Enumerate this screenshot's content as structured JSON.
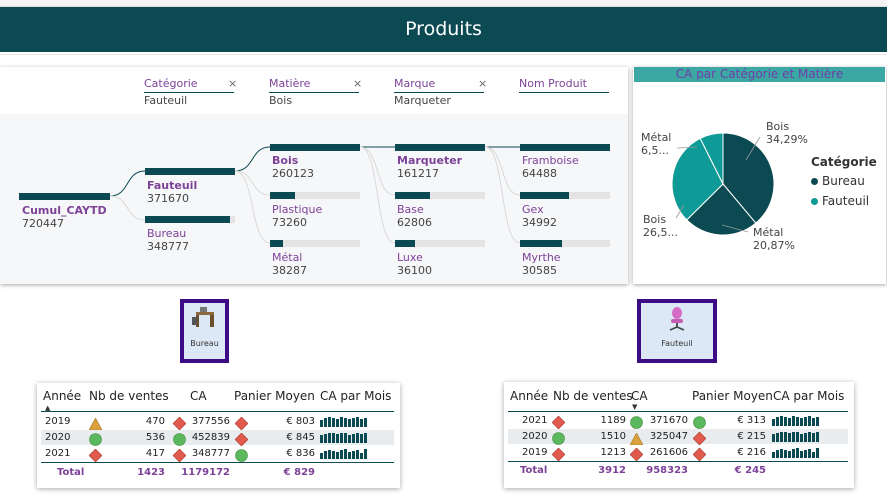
{
  "page": {
    "title": "Produits"
  },
  "filters": [
    {
      "label": "Catégorie",
      "value": "Fauteuil"
    },
    {
      "label": "Matière",
      "value": "Bois"
    },
    {
      "label": "Marque",
      "value": "Marqueter"
    },
    {
      "label": "Nom Produit",
      "value": ""
    }
  ],
  "tree": {
    "root": {
      "name": "Cumul_CAYTD",
      "value": "720447"
    },
    "level1": [
      {
        "name": "Fauteuil",
        "value": "371670",
        "fill": 1.0
      },
      {
        "name": "Bureau",
        "value": "348777",
        "fill": 0.94
      }
    ],
    "level2": [
      {
        "name": "Bois",
        "value": "260123",
        "fill": 1.0
      },
      {
        "name": "Plastique",
        "value": "73260",
        "fill": 0.28
      },
      {
        "name": "Métal",
        "value": "38287",
        "fill": 0.15
      }
    ],
    "level3": [
      {
        "name": "Marqueter",
        "value": "161217",
        "fill": 1.0
      },
      {
        "name": "Base",
        "value": "62806",
        "fill": 0.39
      },
      {
        "name": "Luxe",
        "value": "36100",
        "fill": 0.22
      }
    ],
    "level4": [
      {
        "name": "Framboise",
        "value": "64488",
        "fill": 1.0
      },
      {
        "name": "Gex",
        "value": "34992",
        "fill": 0.54
      },
      {
        "name": "Myrthe",
        "value": "30585",
        "fill": 0.47
      }
    ]
  },
  "pie": {
    "title": "CA par Catégorie et Matière",
    "legend_title": "Catégorie",
    "legend": [
      {
        "name": "Bureau",
        "color": "#0b4a52"
      },
      {
        "name": "Fauteuil",
        "color": "#0e9a96"
      }
    ],
    "labels": {
      "bois_bureau": [
        "Bois",
        "34,29%"
      ],
      "metal_bureau": [
        "Métal",
        "20,87%"
      ],
      "bois_fauteuil": [
        "Bois",
        "26,5..."
      ],
      "metal_fauteuil": [
        "Métal",
        "6,5..."
      ]
    }
  },
  "chart_data": {
    "type": "pie",
    "title": "CA par Catégorie et Matière",
    "series": [
      {
        "name": "Bureau",
        "slices": [
          {
            "label": "Bois",
            "value": 34.29
          },
          {
            "label": "Métal",
            "value": 20.87
          }
        ]
      },
      {
        "name": "Fauteuil",
        "slices": [
          {
            "label": "Bois",
            "value": 26.5
          },
          {
            "label": "Métal",
            "value": 6.5
          }
        ]
      }
    ]
  },
  "buttons": [
    {
      "label": "Bureau"
    },
    {
      "label": "Fauteuil"
    }
  ],
  "table_left": {
    "headers": [
      "Année",
      "Nb de ventes",
      "CA",
      "Panier Moyen",
      "CA par Mois"
    ],
    "rows": [
      {
        "annee": "2019",
        "nb": "470",
        "ca": "377556",
        "panier": "€ 803",
        "nb_icon": "triangle-icon",
        "ca_icon": "diamond-icon",
        "panier_icon": "diamond-icon"
      },
      {
        "annee": "2020",
        "nb": "536",
        "ca": "452839",
        "panier": "€ 845",
        "nb_icon": "circle-icon",
        "ca_icon": "circle-icon",
        "panier_icon": "diamond-icon"
      },
      {
        "annee": "2021",
        "nb": "417",
        "ca": "348777",
        "panier": "€ 836",
        "nb_icon": "diamond-icon",
        "ca_icon": "diamond-icon",
        "panier_icon": "circle-icon"
      }
    ],
    "total": {
      "label": "Total",
      "nb": "1423",
      "ca": "1179172",
      "panier": "€ 829"
    }
  },
  "table_right": {
    "headers": [
      "Année",
      "Nb de ventes",
      "CA",
      "Panier Moyen",
      "CA par Mois"
    ],
    "rows": [
      {
        "annee": "2021",
        "nb": "1189",
        "ca": "371670",
        "panier": "€ 313",
        "nb_icon": "diamond-icon",
        "ca_icon": "circle-icon",
        "panier_icon": "circle-icon"
      },
      {
        "annee": "2020",
        "nb": "1510",
        "ca": "325047",
        "panier": "€ 215",
        "nb_icon": "circle-icon",
        "ca_icon": "triangle-icon",
        "panier_icon": "diamond-icon"
      },
      {
        "annee": "2019",
        "nb": "1213",
        "ca": "261606",
        "panier": "€ 216",
        "nb_icon": "diamond-icon",
        "ca_icon": "diamond-icon",
        "panier_icon": "diamond-icon"
      }
    ],
    "total": {
      "label": "Total",
      "nb": "3912",
      "ca": "958323",
      "panier": "€ 245"
    }
  },
  "colors": {
    "dark_teal": "#0b4a52",
    "teal": "#0e9a96",
    "purple": "#7d4298",
    "green": "#5cb85c",
    "red": "#e05a4e",
    "amber": "#d9a03b"
  }
}
